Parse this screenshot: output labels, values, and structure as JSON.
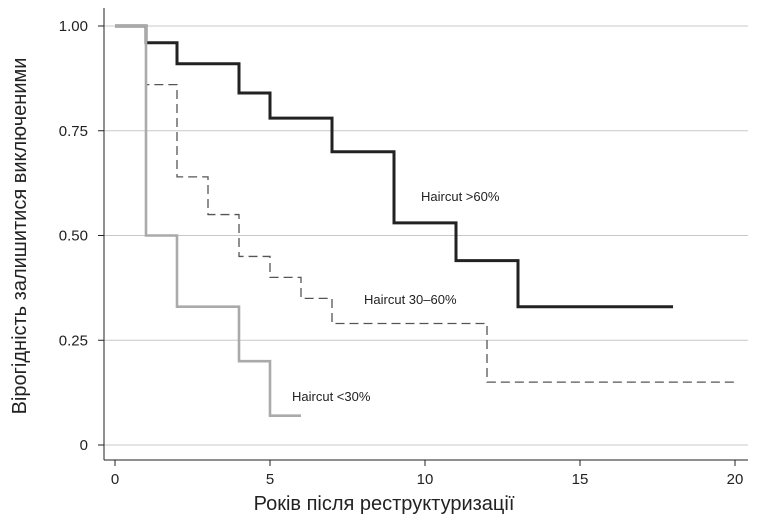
{
  "chart_data": {
    "type": "line",
    "title": "",
    "xlabel": "Років після реструктуризації",
    "ylabel": "Вірогідність залишитися виключеними",
    "xlim": [
      0,
      20
    ],
    "ylim": [
      0,
      1
    ],
    "xticks": [
      0,
      5,
      10,
      15,
      20
    ],
    "xtick_labels": [
      "0",
      "5",
      "10",
      "15",
      "20"
    ],
    "yticks": [
      0,
      0.25,
      0.5,
      0.75,
      1.0
    ],
    "ytick_labels": [
      "0",
      "0.25",
      "0.50",
      "0.75",
      "1.00"
    ],
    "grid": "horizontal",
    "step_function": true,
    "series": [
      {
        "name": "Haircut >60%",
        "color": "#222222",
        "line_style": "solid",
        "x": [
          0,
          1,
          2,
          4,
          5,
          7,
          9,
          11,
          13,
          18
        ],
        "y": [
          1.0,
          0.96,
          0.91,
          0.84,
          0.78,
          0.7,
          0.53,
          0.44,
          0.33,
          0.33
        ]
      },
      {
        "name": "Haircut 30–60%",
        "color": "#555555",
        "line_style": "dashed",
        "x": [
          0,
          1,
          2,
          3,
          4,
          5,
          6,
          7,
          12,
          20
        ],
        "y": [
          1.0,
          0.86,
          0.64,
          0.55,
          0.45,
          0.4,
          0.35,
          0.29,
          0.15,
          0.15
        ]
      },
      {
        "name": "Haircut <30%",
        "color": "#aaaaaa",
        "line_style": "solid",
        "x": [
          0,
          1,
          2,
          4,
          5,
          6
        ],
        "y": [
          1.0,
          0.5,
          0.33,
          0.2,
          0.07,
          0.07
        ]
      }
    ]
  }
}
